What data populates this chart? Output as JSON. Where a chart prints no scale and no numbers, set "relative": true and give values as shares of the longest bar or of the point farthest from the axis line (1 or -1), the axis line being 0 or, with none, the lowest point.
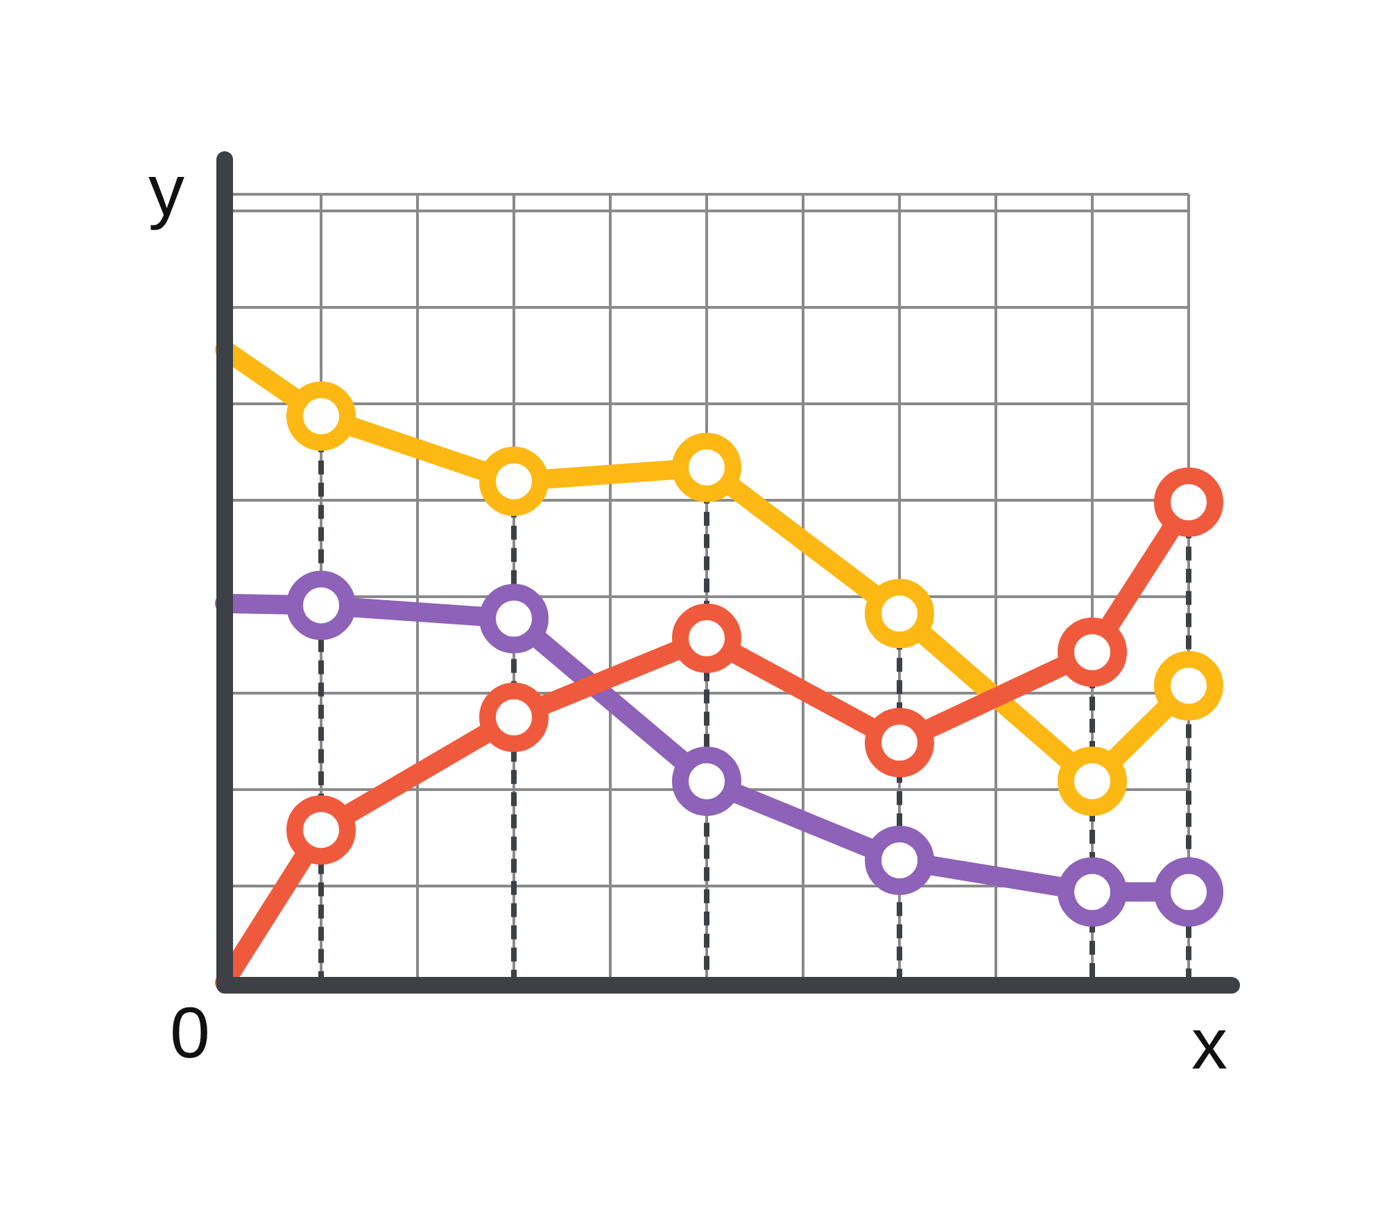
{
  "chart_data": {
    "type": "line",
    "relative": true,
    "xlabel": "x",
    "ylabel": "y",
    "annotations": [
      "0"
    ],
    "categories": [
      null,
      null,
      null,
      null,
      null,
      null,
      null,
      null,
      null,
      null,
      null
    ],
    "grid": true,
    "marker": "circle",
    "line_style": "solid",
    "series": [
      {
        "color": "#fdb813",
        "values": [
          1.0,
          0.895,
          null,
          0.792,
          null,
          0.814,
          null,
          0.583,
          null,
          0.318,
          0.469
        ]
      },
      {
        "color": "#8e62b8",
        "values": [
          0.599,
          0.596,
          null,
          0.575,
          null,
          0.318,
          null,
          0.193,
          null,
          0.143,
          0.143
        ]
      },
      {
        "color": "#f05a3c",
        "values": [
          0,
          0.241,
          null,
          0.419,
          null,
          0.544,
          null,
          0.379,
          null,
          0.522,
          0.759
        ]
      }
    ]
  }
}
